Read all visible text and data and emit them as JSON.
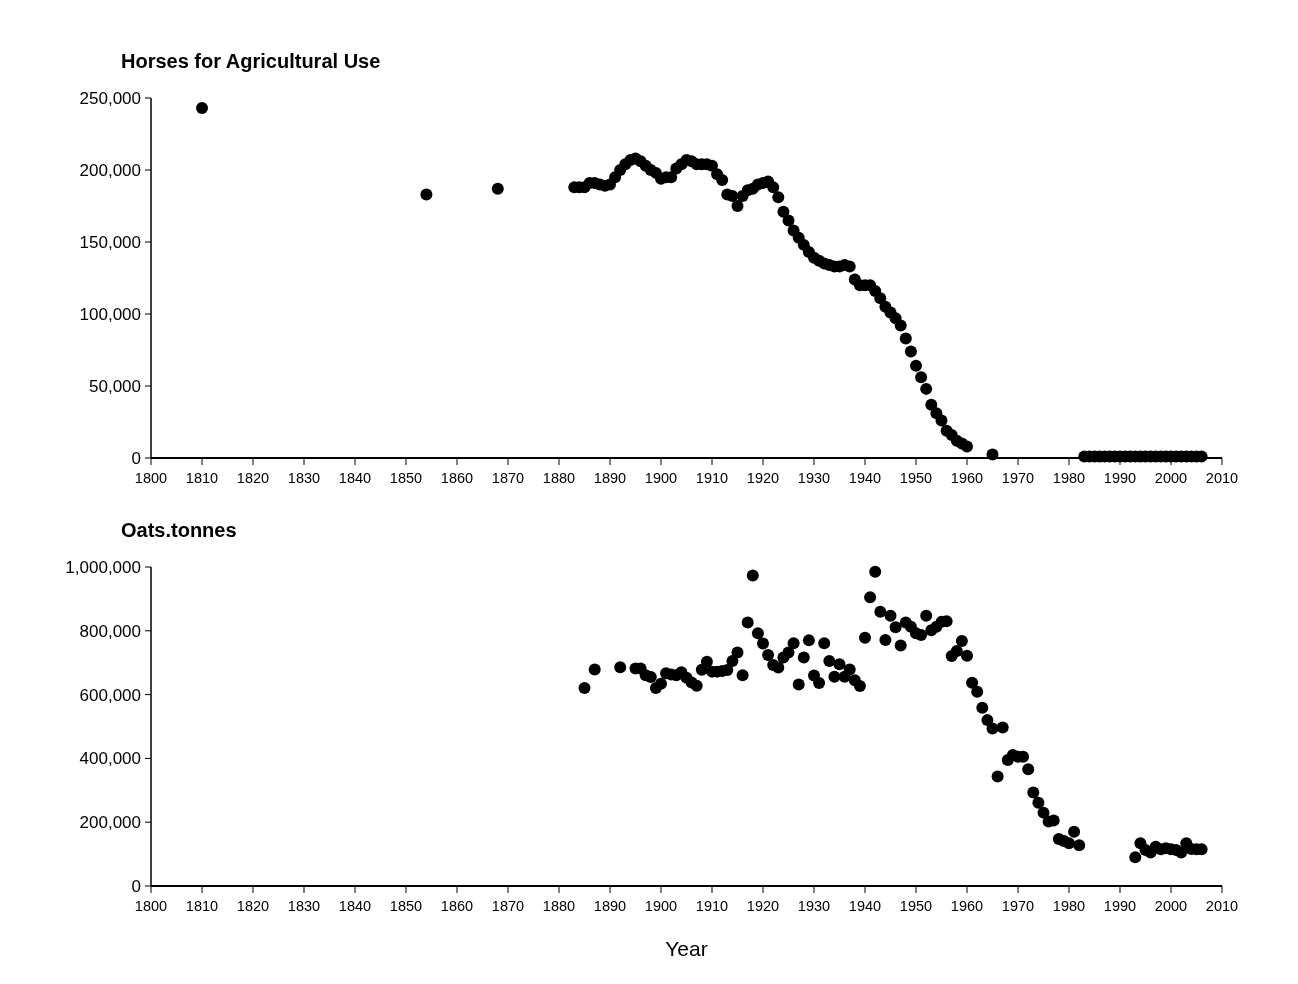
{
  "chart_data": [
    {
      "type": "scatter",
      "title": "Horses for Agricultural Use",
      "marker": "circle",
      "color": "#000000",
      "x": [
        1810,
        1854,
        1868,
        1883,
        1884,
        1885,
        1886,
        1887,
        1888,
        1889,
        1890,
        1891,
        1892,
        1893,
        1894,
        1895,
        1896,
        1897,
        1898,
        1899,
        1900,
        1901,
        1902,
        1903,
        1904,
        1905,
        1906,
        1907,
        1908,
        1909,
        1910,
        1911,
        1912,
        1913,
        1914,
        1915,
        1916,
        1917,
        1918,
        1919,
        1920,
        1921,
        1922,
        1923,
        1924,
        1925,
        1926,
        1927,
        1928,
        1929,
        1930,
        1931,
        1932,
        1933,
        1934,
        1935,
        1936,
        1937,
        1938,
        1939,
        1940,
        1941,
        1942,
        1943,
        1944,
        1945,
        1946,
        1947,
        1948,
        1949,
        1950,
        1951,
        1952,
        1953,
        1954,
        1955,
        1956,
        1957,
        1958,
        1959,
        1960,
        1965,
        1983,
        1984,
        1985,
        1986,
        1987,
        1988,
        1989,
        1990,
        1991,
        1992,
        1993,
        1994,
        1995,
        1996,
        1997,
        1998,
        1999,
        2000,
        2001,
        2002,
        2003,
        2004,
        2005,
        2006
      ],
      "values": [
        243000,
        183000,
        187000,
        188000,
        188000,
        188000,
        191000,
        191000,
        190000,
        189000,
        190000,
        195000,
        200000,
        204000,
        207000,
        208000,
        206000,
        203000,
        200000,
        198000,
        194000,
        195000,
        195000,
        201000,
        204000,
        207000,
        206000,
        204000,
        204000,
        204000,
        203000,
        197000,
        193000,
        183000,
        182000,
        175000,
        182000,
        186000,
        187000,
        190000,
        191000,
        192000,
        188000,
        181000,
        171000,
        165000,
        158000,
        153000,
        148000,
        143000,
        139000,
        137000,
        135000,
        134000,
        133000,
        133000,
        134000,
        133000,
        124000,
        120000,
        120000,
        120000,
        116000,
        111000,
        105000,
        101000,
        97000,
        92000,
        83000,
        74000,
        64000,
        56000,
        48000,
        37000,
        31000,
        26000,
        19000,
        16000,
        12000,
        10000,
        8000,
        2500,
        1000,
        1000,
        1000,
        1000,
        1000,
        1000,
        1000,
        1000,
        1000,
        1000,
        1000,
        1000,
        1000,
        1000,
        1000,
        1000,
        1000,
        1000,
        1000,
        1000,
        1000,
        1000,
        1000,
        1000
      ],
      "xlim": [
        1800,
        2010
      ],
      "xticks": [
        1800,
        1810,
        1820,
        1830,
        1840,
        1850,
        1860,
        1870,
        1880,
        1890,
        1900,
        1910,
        1920,
        1930,
        1940,
        1950,
        1960,
        1970,
        1980,
        1990,
        2000,
        2010
      ],
      "ylim": [
        0,
        250000
      ],
      "yticks": [
        0,
        {
          "value": 50000,
          "label": "50,000"
        },
        {
          "value": 100000,
          "label": "100,000"
        },
        {
          "value": 150000,
          "label": "150,000"
        },
        {
          "value": 200000,
          "label": "200,000"
        },
        {
          "value": 250000,
          "label": "250,000"
        }
      ]
    },
    {
      "type": "scatter",
      "title": "Oats.tonnes",
      "xlabel": "Year",
      "marker": "circle",
      "color": "#000000",
      "x": [
        1885,
        1887,
        1892,
        1895,
        1896,
        1897,
        1898,
        1899,
        1900,
        1901,
        1902,
        1903,
        1904,
        1905,
        1906,
        1907,
        1908,
        1909,
        1910,
        1911,
        1912,
        1913,
        1914,
        1915,
        1916,
        1917,
        1918,
        1919,
        1920,
        1921,
        1922,
        1923,
        1924,
        1925,
        1926,
        1927,
        1928,
        1929,
        1930,
        1931,
        1932,
        1933,
        1934,
        1935,
        1936,
        1937,
        1938,
        1939,
        1940,
        1941,
        1942,
        1943,
        1944,
        1945,
        1946,
        1947,
        1948,
        1949,
        1950,
        1951,
        1952,
        1953,
        1954,
        1955,
        1956,
        1957,
        1958,
        1959,
        1960,
        1961,
        1962,
        1963,
        1964,
        1965,
        1966,
        1967,
        1968,
        1969,
        1970,
        1971,
        1972,
        1973,
        1974,
        1975,
        1976,
        1977,
        1978,
        1979,
        1980,
        1981,
        1982,
        1993,
        1994,
        1995,
        1996,
        1997,
        1998,
        1999,
        2000,
        2001,
        2002,
        2003,
        2004,
        2005,
        2006
      ],
      "values": [
        621000,
        679000,
        686000,
        682000,
        682000,
        661000,
        655000,
        621000,
        634000,
        667000,
        663000,
        661000,
        670000,
        653000,
        638000,
        628000,
        678000,
        703000,
        672000,
        672000,
        674000,
        677000,
        705000,
        732000,
        661000,
        826000,
        973000,
        792000,
        760000,
        724000,
        693000,
        685000,
        716000,
        732000,
        761000,
        632000,
        716000,
        770000,
        660000,
        636000,
        761000,
        705000,
        656000,
        695000,
        656000,
        679000,
        645000,
        627000,
        778000,
        905000,
        985000,
        860000,
        771000,
        847000,
        811000,
        754000,
        826000,
        813000,
        792000,
        787000,
        847000,
        802000,
        813000,
        828000,
        830000,
        721000,
        737000,
        768000,
        722000,
        637000,
        609000,
        559000,
        520000,
        494000,
        343000,
        497000,
        395000,
        411000,
        405000,
        405000,
        366000,
        293000,
        261000,
        230000,
        202000,
        205000,
        147000,
        141000,
        134000,
        170000,
        128000,
        90000,
        134000,
        113000,
        105000,
        123000,
        115000,
        118000,
        115000,
        113000,
        105000,
        134000,
        116000,
        115000,
        115000
      ],
      "xlim": [
        1800,
        2010
      ],
      "xticks": [
        1800,
        1810,
        1820,
        1830,
        1840,
        1850,
        1860,
        1870,
        1880,
        1890,
        1900,
        1910,
        1920,
        1930,
        1940,
        1950,
        1960,
        1970,
        1980,
        1990,
        2000,
        2010
      ],
      "ylim": [
        0,
        1000000
      ],
      "yticks": [
        0,
        {
          "value": 200000,
          "label": "200,000"
        },
        {
          "value": 400000,
          "label": "400,000"
        },
        {
          "value": 600000,
          "label": "600,000"
        },
        {
          "value": 800000,
          "label": "800,000"
        },
        {
          "value": 1000000,
          "label": "1,000,000"
        }
      ]
    }
  ]
}
